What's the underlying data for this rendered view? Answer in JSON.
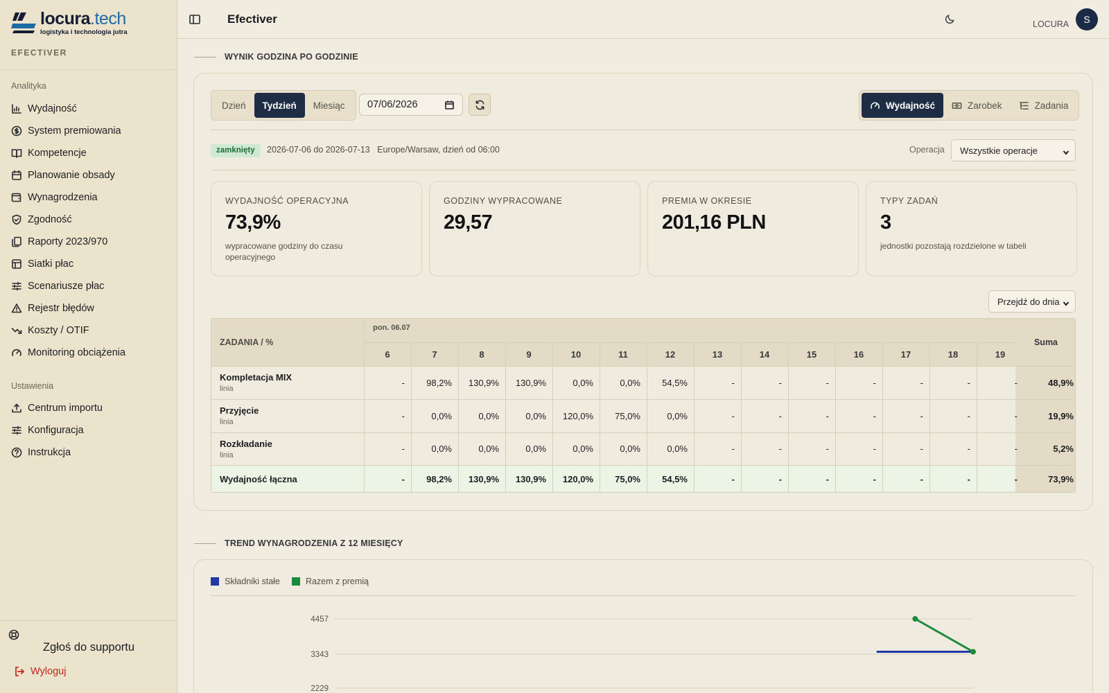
{
  "brand": {
    "logo_word": "locura",
    "logo_tld": ".tech",
    "tagline": "logistyka i technologia jutra",
    "subtitle": "EFECTIVER"
  },
  "sidebar": {
    "section_analytics": "Analityka",
    "section_settings": "Ustawienia",
    "items": [
      {
        "label": "Wydajność",
        "icon": "bar-chart-icon"
      },
      {
        "label": "System premiowania",
        "icon": "coin-icon"
      },
      {
        "label": "Kompetencje",
        "icon": "book-open-icon"
      },
      {
        "label": "Planowanie obsady",
        "icon": "calendar-icon"
      },
      {
        "label": "Wynagrodzenia",
        "icon": "wallet-icon"
      },
      {
        "label": "Zgodność",
        "icon": "shield-check-icon"
      },
      {
        "label": "Raporty 2023/970",
        "icon": "files-icon"
      },
      {
        "label": "Siatki płac",
        "icon": "table-icon"
      },
      {
        "label": "Scenariusze płac",
        "icon": "sliders-icon"
      },
      {
        "label": "Rejestr błędów",
        "icon": "warning-icon"
      },
      {
        "label": "Koszty / OTIF",
        "icon": "trend-down-icon"
      },
      {
        "label": "Monitoring obciążenia",
        "icon": "gauge-icon"
      }
    ],
    "settings_items": [
      {
        "label": "Centrum importu",
        "icon": "upload-icon"
      },
      {
        "label": "Konfiguracja",
        "icon": "sliders-icon"
      },
      {
        "label": "Instrukcja",
        "icon": "help-circle-icon"
      }
    ],
    "support": "Zgłoś do supportu",
    "logout": "Wyloguj"
  },
  "topbar": {
    "title": "Efectiver",
    "user": "LOCURA",
    "avatar_initial": "S"
  },
  "section1": {
    "title": "WYNIK GODZINA PO GODZINIE",
    "range_tabs": [
      "Dzień",
      "Tydzień",
      "Miesiąc"
    ],
    "range_active": "Tydzień",
    "date_value": "07/06/2026",
    "view_tabs": [
      "Wydajność",
      "Zarobek",
      "Zadania"
    ],
    "view_active": "Wydajność",
    "status_badge": "zamknięty",
    "period": "2026-07-06 do 2026-07-13   Europe/Warsaw, dzień od 06:00",
    "operation_label": "Operacja",
    "operation_value": "Wszystkie operacje",
    "jump_label": "Przejdź do dnia",
    "kpis": [
      {
        "title": "WYDAJNOŚĆ OPERACYJNA",
        "value": "73,9%",
        "desc": "wypracowane godziny do czasu operacyjnego"
      },
      {
        "title": "GODZINY WYPRACOWANE",
        "value": "29,57",
        "desc": ""
      },
      {
        "title": "PREMIA W OKRESIE",
        "value": "201,16 PLN",
        "desc": ""
      },
      {
        "title": "TYPY ZADAŃ",
        "value": "3",
        "desc": "jednostki pozostają rozdzielone w tabeli"
      }
    ],
    "table": {
      "corner": "ZADANIA / %",
      "day_label": "pon. 06.07",
      "hours": [
        "6",
        "7",
        "8",
        "9",
        "10",
        "11",
        "12",
        "13",
        "14",
        "15",
        "16",
        "17",
        "18",
        "19"
      ],
      "sum_label": "Suma",
      "rows": [
        {
          "name": "Kompletacja MIX",
          "sub": "linia",
          "values": [
            "-",
            "98,2%",
            "130,9%",
            "130,9%",
            "0,0%",
            "0,0%",
            "54,5%",
            "-",
            "-",
            "-",
            "-",
            "-",
            "-",
            "-"
          ],
          "sum": "48,9%"
        },
        {
          "name": "Przyjęcie",
          "sub": "linia",
          "values": [
            "-",
            "0,0%",
            "0,0%",
            "0,0%",
            "120,0%",
            "75,0%",
            "0,0%",
            "-",
            "-",
            "-",
            "-",
            "-",
            "-",
            "-"
          ],
          "sum": "19,9%"
        },
        {
          "name": "Rozkładanie",
          "sub": "linia",
          "values": [
            "-",
            "0,0%",
            "0,0%",
            "0,0%",
            "0,0%",
            "0,0%",
            "0,0%",
            "-",
            "-",
            "-",
            "-",
            "-",
            "-",
            "-"
          ],
          "sum": "5,2%"
        }
      ],
      "total": {
        "name": "Wydajność łączna",
        "values": [
          "-",
          "98,2%",
          "130,9%",
          "130,9%",
          "120,0%",
          "75,0%",
          "54,5%",
          "-",
          "-",
          "-",
          "-",
          "-",
          "-",
          "-"
        ],
        "sum": "73,9%"
      }
    }
  },
  "section2": {
    "title": "TREND WYNAGRODZENIA Z 12 MIESIĘCY"
  },
  "chart_data": {
    "type": "line",
    "legend_position": "top-left",
    "y_ticks": [
      "4457",
      "3343",
      "2229"
    ],
    "series": [
      {
        "name": "Składniki stałe",
        "color": "#1f3aa6",
        "x_index": [
          9,
          10,
          11
        ],
        "values": [
          3400,
          3400,
          3400
        ]
      },
      {
        "name": "Razem z premią",
        "color": "#1a8a3c",
        "x_index": [
          10,
          11
        ],
        "values": [
          4457,
          3400
        ]
      }
    ],
    "grid": true
  }
}
